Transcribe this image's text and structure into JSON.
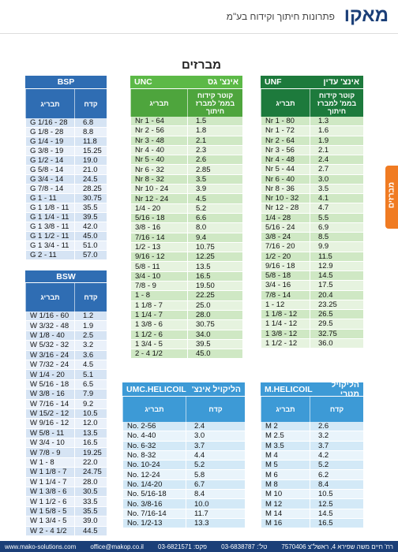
{
  "header": {
    "logo": "מאקו",
    "tagline": "פתרונות חיתוך וקידוח בע\"מ"
  },
  "page_title": "מברזים",
  "side_tab": "מברזים",
  "tables": [
    {
      "title": "BSP",
      "columns": [
        "תבריג",
        "קדח"
      ],
      "rows": [
        [
          "G 1/16 - 28",
          "6.8"
        ],
        [
          "G 1/8 - 28",
          "8.8"
        ],
        [
          "G 1/4 - 19",
          "11.8"
        ],
        [
          "G 3/8 - 19",
          "15.25"
        ],
        [
          "G 1/2 - 14",
          "19.0"
        ],
        [
          "G 5/8 - 14",
          "21.0"
        ],
        [
          "G 3/4 - 14",
          "24.5"
        ],
        [
          "G 7/8 - 14",
          "28.25"
        ],
        [
          "G 1 - 11",
          "30.75"
        ],
        [
          "G 1 1/8 - 11",
          "35.5"
        ],
        [
          "G 1 1/4 - 11",
          "39.5"
        ],
        [
          "G 1 3/8 - 11",
          "42.0"
        ],
        [
          "G 1 1/2 - 11",
          "45.0"
        ],
        [
          "G 1 3/4 - 11",
          "51.0"
        ],
        [
          "G 2 - 11",
          "57.0"
        ]
      ]
    },
    {
      "title": "UNC",
      "subtitle": "אינצ' גס",
      "columns": [
        "תבריג",
        "קוטר קידוח בממ' למברז חיתוך"
      ],
      "rows": [
        [
          "Nr 1 - 64",
          "1.5"
        ],
        [
          "Nr 2 - 56",
          "1.8"
        ],
        [
          "Nr 3 - 48",
          "2.1"
        ],
        [
          "Nr 4 - 40",
          "2.3"
        ],
        [
          "Nr 5 - 40",
          "2.6"
        ],
        [
          "Nr 6 - 32",
          "2.85"
        ],
        [
          "Nr 8 - 32",
          "3.5"
        ],
        [
          "Nr 10 - 24",
          "3.9"
        ],
        [
          "Nr 12 - 24",
          "4.5"
        ],
        [
          "1/4 - 20",
          "5.2"
        ],
        [
          "5/16 - 18",
          "6.6"
        ],
        [
          "3/8 - 16",
          "8.0"
        ],
        [
          "7/16 - 14",
          "9.4"
        ],
        [
          "1/2 - 13",
          "10.75"
        ],
        [
          "9/16 - 12",
          "12.25"
        ],
        [
          "5/8 - 11",
          "13.5"
        ],
        [
          "3/4 - 10",
          "16.5"
        ],
        [
          "7/8 - 9",
          "19.50"
        ],
        [
          "1 - 8",
          "22.25"
        ],
        [
          "1 1/8 - 7",
          "25.0"
        ],
        [
          "1 1/4 - 7",
          "28.0"
        ],
        [
          "1 3/8 - 6",
          "30.75"
        ],
        [
          "1 1/2 - 6",
          "34.0"
        ],
        [
          "1 3/4 - 5",
          "39.5"
        ],
        [
          "2 - 4 1/2",
          "45.0"
        ]
      ]
    },
    {
      "title": "UNF",
      "subtitle": "אינצ' עדין",
      "columns": [
        "תבריג",
        "קוטר קידוח בממ' למברז חיתוך"
      ],
      "rows": [
        [
          "Nr 1 - 80",
          "1.3"
        ],
        [
          "Nr 1 - 72",
          "1.6"
        ],
        [
          "Nr 2 - 64",
          "1.9"
        ],
        [
          "Nr 3 - 56",
          "2.1"
        ],
        [
          "Nr 4 - 48",
          "2.4"
        ],
        [
          "Nr 5 - 44",
          "2.7"
        ],
        [
          "Nr 6 - 40",
          "3.0"
        ],
        [
          "Nr 8 - 36",
          "3.5"
        ],
        [
          "Nr 10 - 32",
          "4.1"
        ],
        [
          "Nr 12 - 28",
          "4.7"
        ],
        [
          "1/4 - 28",
          "5.5"
        ],
        [
          "5/16 - 24",
          "6.9"
        ],
        [
          "3/8 - 24",
          "8.5"
        ],
        [
          "7/16 - 20",
          "9.9"
        ],
        [
          "1/2 - 20",
          "11.5"
        ],
        [
          "9/16 - 18",
          "12.9"
        ],
        [
          "5/8 - 18",
          "14.5"
        ],
        [
          "3/4 - 16",
          "17.5"
        ],
        [
          "7/8 - 14",
          "20.4"
        ],
        [
          "1 - 12",
          "23.25"
        ],
        [
          "1 1/8 - 12",
          "26.5"
        ],
        [
          "1 1/4 - 12",
          "29.5"
        ],
        [
          "1 3/8 - 12",
          "32.75"
        ],
        [
          "1 1/2 - 12",
          "36.0"
        ]
      ]
    },
    {
      "title": "BSW",
      "columns": [
        "תבריג",
        "קדח"
      ],
      "rows": [
        [
          "W 1/16 - 60",
          "1.2"
        ],
        [
          "W 3/32 - 48",
          "1.9"
        ],
        [
          "W 1/8 - 40",
          "2.5"
        ],
        [
          "W 5/32 - 32",
          "3.2"
        ],
        [
          "W 3/16 - 24",
          "3.6"
        ],
        [
          "W 7/32 - 24",
          "4.5"
        ],
        [
          "W 1/4 - 20",
          "5.1"
        ],
        [
          "W 5/16 - 18",
          "6.5"
        ],
        [
          "W 3/8 - 16",
          "7.9"
        ],
        [
          "W 7/16 - 14",
          "9.2"
        ],
        [
          "W 15/2 - 12",
          "10.5"
        ],
        [
          "W 9/16 - 12",
          "12.0"
        ],
        [
          "W 5/8 - 11",
          "13.5"
        ],
        [
          "W 3/4 - 10",
          "16.5"
        ],
        [
          "W 7/8 - 9",
          "19.25"
        ],
        [
          "W 1 - 8",
          "22.0"
        ],
        [
          "W 1 1/8 - 7",
          "24.75"
        ],
        [
          "W 1 1/4 - 7",
          "28.0"
        ],
        [
          "W 1 3/8 - 6",
          "30.5"
        ],
        [
          "W 1 1/2 - 6",
          "33.5"
        ],
        [
          "W 1 5/8 - 5",
          "35.5"
        ],
        [
          "W 1 3/4 - 5",
          "39.0"
        ],
        [
          "W 2 - 4 1/2",
          "44.5"
        ]
      ]
    },
    {
      "title": "UMC.HELICOIL",
      "subtitle": "הליקויל אינצ'",
      "columns": [
        "תבריג",
        "קדח"
      ],
      "rows": [
        [
          "No. 2-56",
          "2.4"
        ],
        [
          "No. 4-40",
          "3.0"
        ],
        [
          "No. 6-32",
          "3.7"
        ],
        [
          "No. 8-32",
          "4.4"
        ],
        [
          "No. 10-24",
          "5.2"
        ],
        [
          "No. 12-24",
          "5.8"
        ],
        [
          "No. 1/4-20",
          "6.7"
        ],
        [
          "No. 5/16-18",
          "8.4"
        ],
        [
          "No. 3/8-16",
          "10.0"
        ],
        [
          "No. 7/16-14",
          "11.7"
        ],
        [
          "No. 1/2-13",
          "13.3"
        ]
      ]
    },
    {
      "title": "M.HELICOIL",
      "subtitle": "הליקויל מטרי",
      "columns": [
        "תבריג",
        "קדח"
      ],
      "rows": [
        [
          "M 2",
          "2.6"
        ],
        [
          "M 2.5",
          "3.2"
        ],
        [
          "M 3.5",
          "3.7"
        ],
        [
          "M 4",
          "4.2"
        ],
        [
          "M 5",
          "5.2"
        ],
        [
          "M 6",
          "6.2"
        ],
        [
          "M 8",
          "8.4"
        ],
        [
          "M 10",
          "10.5"
        ],
        [
          "M 12",
          "12.5"
        ],
        [
          "M 14",
          "14.5"
        ],
        [
          "M 16",
          "16.5"
        ]
      ]
    }
  ],
  "footer": {
    "website": "www.mako-solutions.com",
    "email": "office@makop.co.il",
    "fax": "פקס: 03-6821571",
    "phone": "טל': 03-6838787",
    "address": "רח' חיים משה שפירא 4, ראשל\"צ 7570406"
  }
}
